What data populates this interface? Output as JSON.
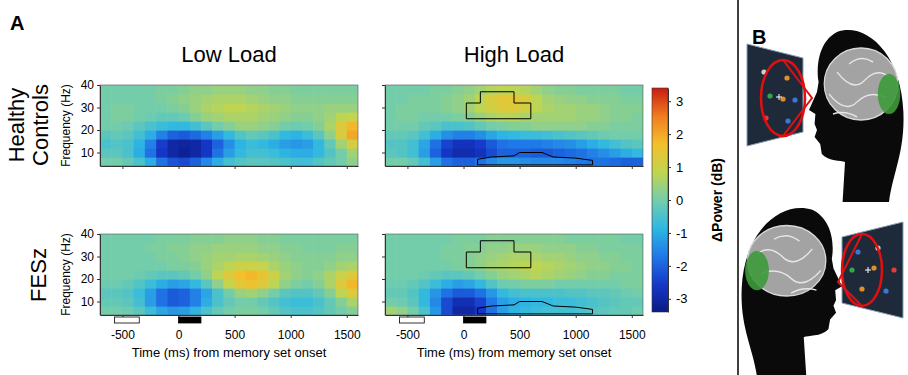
{
  "panel_labels": [
    "A",
    "B"
  ],
  "column_titles": [
    "Low Load",
    "High Load"
  ],
  "row_titles": [
    "Healthy Controls",
    "FESz"
  ],
  "colorbar": {
    "title": "ΔPower (dB)",
    "range": [
      -3.4,
      3.4
    ],
    "ticks": [
      -3,
      -2,
      -1,
      0,
      1,
      2,
      3
    ]
  },
  "chart_data": [
    {
      "type": "heatmap",
      "ylabel": "Frequency (Hz)",
      "tick_labels": "y",
      "xlim": [
        -700,
        1600
      ],
      "ylim": [
        4,
        40
      ],
      "xticks": [
        -500,
        0,
        500,
        1000,
        1500
      ],
      "yticks": [
        10,
        20,
        30,
        40
      ],
      "x_bins": [
        -700,
        -600,
        -500,
        -400,
        -300,
        -200,
        -100,
        0,
        100,
        200,
        300,
        400,
        500,
        600,
        700,
        800,
        900,
        1000,
        1100,
        1200,
        1300,
        1400,
        1500,
        1600
      ],
      "y_bins": [
        4,
        8,
        12,
        16,
        20,
        24,
        28,
        32,
        36,
        40
      ],
      "cells": [
        [
          0,
          0,
          -0.2,
          -0.5,
          -1,
          -1.8,
          -2.2,
          -2.3,
          -2,
          -1.5,
          -1,
          -0.6,
          -0.4,
          -0.3,
          -0.3,
          -0.4,
          -0.5,
          -0.6,
          -0.6,
          -0.4,
          -0.2,
          0,
          0.3
        ],
        [
          -0.3,
          -0.3,
          -0.5,
          -1,
          -1.8,
          -2.6,
          -3,
          -3.2,
          -3,
          -2.6,
          -1.8,
          -1.2,
          -0.8,
          -0.6,
          -0.6,
          -0.7,
          -0.9,
          -1,
          -1,
          -0.8,
          -0.4,
          0,
          0.5
        ],
        [
          -0.5,
          -0.4,
          -0.5,
          -0.9,
          -1.6,
          -2.5,
          -3,
          -3.1,
          -3,
          -2.6,
          -2,
          -1.4,
          -0.9,
          -0.7,
          -0.8,
          -1,
          -1.2,
          -1.3,
          -1.2,
          -0.8,
          -0.2,
          0.5,
          1.2
        ],
        [
          -0.3,
          -0.2,
          -0.3,
          -0.6,
          -1,
          -1.6,
          -2,
          -2.1,
          -1.9,
          -1.6,
          -1.2,
          -0.8,
          -0.4,
          -0.2,
          -0.3,
          -0.5,
          -0.8,
          -0.9,
          -0.7,
          -0.3,
          0.3,
          1.2,
          2
        ],
        [
          0,
          0,
          -0.1,
          -0.3,
          -0.5,
          -0.7,
          -0.8,
          -0.8,
          -0.6,
          -0.3,
          0,
          0.2,
          0.4,
          0.4,
          0.3,
          0.2,
          0,
          -0.1,
          0,
          0.2,
          0.6,
          1.3,
          1.8
        ],
        [
          0,
          0.1,
          0.1,
          0,
          -0.1,
          -0.2,
          -0.2,
          -0.1,
          0.2,
          0.4,
          0.5,
          0.6,
          0.6,
          0.6,
          0.5,
          0.4,
          0.3,
          0.2,
          0.2,
          0.3,
          0.5,
          0.8,
          0.9
        ],
        [
          0,
          0.1,
          0.1,
          0,
          0,
          0,
          0.1,
          0.2,
          0.4,
          0.6,
          0.7,
          0.8,
          0.8,
          0.7,
          0.6,
          0.5,
          0.4,
          0.3,
          0.3,
          0.3,
          0.4,
          0.4,
          0.4
        ],
        [
          0,
          0,
          0,
          0,
          0,
          0.1,
          0.2,
          0.3,
          0.4,
          0.5,
          0.6,
          0.6,
          0.6,
          0.5,
          0.4,
          0.3,
          0.3,
          0.2,
          0.2,
          0.2,
          0.2,
          0.2,
          0.2
        ],
        [
          0,
          0,
          0,
          0,
          0,
          0.1,
          0.1,
          0.2,
          0.3,
          0.3,
          0.4,
          0.4,
          0.4,
          0.3,
          0.3,
          0.2,
          0.2,
          0.1,
          0.1,
          0.1,
          0.1,
          0.1,
          0.1
        ]
      ]
    },
    {
      "type": "heatmap",
      "tick_labels": false,
      "xlim": [
        -700,
        1600
      ],
      "ylim": [
        4,
        40
      ],
      "xticks": [
        -500,
        0,
        500,
        1000,
        1500
      ],
      "yticks": [
        10,
        20,
        30,
        40
      ],
      "x_bins": [
        -700,
        -600,
        -500,
        -400,
        -300,
        -200,
        -100,
        0,
        100,
        200,
        300,
        400,
        500,
        600,
        700,
        800,
        900,
        1000,
        1100,
        1200,
        1300,
        1400,
        1500,
        1600
      ],
      "y_bins": [
        4,
        8,
        12,
        16,
        20,
        24,
        28,
        32,
        36,
        40
      ],
      "cells": [
        [
          0,
          0,
          -0.2,
          -0.6,
          -1.2,
          -1.8,
          -2,
          -2,
          -1.8,
          -1.5,
          -1.3,
          -1.3,
          -1.4,
          -1.5,
          -1.5,
          -1.5,
          -1.6,
          -1.7,
          -1.8,
          -1.8,
          -1.9,
          -2,
          -2
        ],
        [
          -0.3,
          -0.4,
          -0.6,
          -1.2,
          -2,
          -2.6,
          -2.9,
          -2.9,
          -2.7,
          -2.3,
          -2,
          -2,
          -2,
          -2.1,
          -2.1,
          -2,
          -1.9,
          -1.8,
          -1.6,
          -1.4,
          -1.2,
          -1,
          -0.8
        ],
        [
          -0.4,
          -0.4,
          -0.6,
          -1.1,
          -1.8,
          -2.4,
          -2.7,
          -2.7,
          -2.5,
          -2.1,
          -1.8,
          -1.7,
          -1.7,
          -1.7,
          -1.6,
          -1.5,
          -1.4,
          -1.2,
          -1,
          -0.8,
          -0.6,
          -0.4,
          -0.3
        ],
        [
          -0.2,
          -0.2,
          -0.3,
          -0.6,
          -1,
          -1.4,
          -1.6,
          -1.6,
          -1.4,
          -1.1,
          -0.9,
          -0.8,
          -0.7,
          -0.7,
          -0.6,
          -0.5,
          -0.4,
          -0.3,
          -0.2,
          -0.1,
          0,
          0,
          0
        ],
        [
          0,
          0,
          0,
          -0.2,
          -0.3,
          -0.5,
          -0.5,
          -0.4,
          -0.2,
          0,
          0.1,
          0.2,
          0.2,
          0.3,
          0.3,
          0.3,
          0.3,
          0.3,
          0.2,
          0.2,
          0.1,
          0.1,
          0.1
        ],
        [
          0,
          0.1,
          0.1,
          0,
          0,
          0,
          0.1,
          0.2,
          0.4,
          0.6,
          0.7,
          0.7,
          0.6,
          0.5,
          0.5,
          0.5,
          0.5,
          0.4,
          0.4,
          0.3,
          0.2,
          0.2,
          0.1
        ],
        [
          0,
          0.1,
          0.1,
          0.1,
          0.1,
          0.2,
          0.3,
          0.5,
          0.8,
          1.1,
          1.3,
          1.3,
          1.1,
          0.8,
          0.6,
          0.5,
          0.5,
          0.4,
          0.4,
          0.3,
          0.2,
          0.2,
          0.2
        ],
        [
          0,
          0,
          0.1,
          0.1,
          0.1,
          0.2,
          0.3,
          0.5,
          0.8,
          1.2,
          1.4,
          1.4,
          1.2,
          0.8,
          0.5,
          0.4,
          0.3,
          0.3,
          0.2,
          0.2,
          0.2,
          0.1,
          0.1
        ],
        [
          0,
          0,
          0,
          0,
          0.1,
          0.1,
          0.2,
          0.3,
          0.5,
          0.7,
          0.8,
          0.8,
          0.7,
          0.5,
          0.3,
          0.2,
          0.2,
          0.1,
          0.1,
          0.1,
          0.1,
          0,
          0
        ]
      ],
      "clusters": [
        [
          [
            150,
            37
          ],
          [
            450,
            37
          ],
          [
            450,
            32
          ],
          [
            600,
            32
          ],
          [
            600,
            25
          ],
          [
            25,
            25
          ],
          [
            25,
            32
          ],
          [
            150,
            32
          ]
        ],
        [
          [
            125,
            4.5
          ],
          [
            1150,
            4.5
          ],
          [
            1150,
            6.5
          ],
          [
            1000,
            7.5
          ],
          [
            800,
            8
          ],
          [
            700,
            10
          ],
          [
            500,
            10
          ],
          [
            450,
            8.5
          ],
          [
            250,
            8
          ],
          [
            125,
            7
          ]
        ]
      ]
    },
    {
      "type": "heatmap",
      "ylabel": "Frequency (Hz)",
      "xlabel": "Time (ms) from memory set onset",
      "xlim": [
        -700,
        1600
      ],
      "ylim": [
        4,
        40
      ],
      "xticks": [
        -500,
        0,
        500,
        1000,
        1500
      ],
      "yticks": [
        10,
        20,
        30,
        40
      ],
      "x_bins": [
        -700,
        -600,
        -500,
        -400,
        -300,
        -200,
        -100,
        0,
        100,
        200,
        300,
        400,
        500,
        600,
        700,
        800,
        900,
        1000,
        1100,
        1200,
        1300,
        1400,
        1500,
        1600
      ],
      "y_bins": [
        4,
        8,
        12,
        16,
        20,
        24,
        28,
        32,
        36,
        40
      ],
      "cells": [
        [
          0,
          0,
          -0.1,
          -0.3,
          -0.7,
          -1.1,
          -1.3,
          -1.2,
          -0.9,
          -0.5,
          -0.2,
          0,
          0.1,
          0.1,
          0,
          -0.2,
          -0.4,
          -0.5,
          -0.5,
          -0.4,
          -0.2,
          0,
          0.2
        ],
        [
          -0.2,
          -0.2,
          -0.3,
          -0.6,
          -1.2,
          -1.8,
          -2.1,
          -2,
          -1.6,
          -1,
          -0.5,
          -0.2,
          0,
          0,
          -0.2,
          -0.4,
          -0.6,
          -0.7,
          -0.7,
          -0.5,
          -0.2,
          0.2,
          0.6
        ],
        [
          -0.3,
          -0.3,
          -0.4,
          -0.7,
          -1.2,
          -1.8,
          -2.1,
          -2,
          -1.6,
          -1.1,
          -0.5,
          0,
          0.4,
          0.5,
          0.3,
          0,
          -0.3,
          -0.4,
          -0.4,
          -0.2,
          0.2,
          0.8,
          1.3
        ],
        [
          -0.1,
          -0.1,
          -0.2,
          -0.4,
          -0.7,
          -1,
          -1.2,
          -1.1,
          -0.8,
          -0.3,
          0.3,
          0.9,
          1.4,
          1.6,
          1.3,
          0.8,
          0.3,
          0.1,
          0,
          0.2,
          0.6,
          1.3,
          1.8
        ],
        [
          0,
          0,
          0,
          -0.1,
          -0.2,
          -0.3,
          -0.3,
          -0.2,
          0,
          0.3,
          0.8,
          1.3,
          1.7,
          1.8,
          1.5,
          1,
          0.5,
          0.3,
          0.2,
          0.3,
          0.6,
          1,
          1.3
        ],
        [
          0,
          0,
          0,
          0,
          0,
          0,
          0.1,
          0.1,
          0.2,
          0.4,
          0.6,
          0.8,
          1,
          1,
          0.9,
          0.6,
          0.4,
          0.3,
          0.2,
          0.2,
          0.3,
          0.5,
          0.6
        ],
        [
          0,
          0,
          0,
          0,
          0,
          0.1,
          0.1,
          0.2,
          0.3,
          0.4,
          0.5,
          0.5,
          0.6,
          0.6,
          0.5,
          0.4,
          0.3,
          0.2,
          0.2,
          0.2,
          0.2,
          0.3,
          0.3
        ],
        [
          0,
          0,
          0,
          0,
          0.1,
          0.1,
          0.2,
          0.2,
          0.3,
          0.3,
          0.4,
          0.4,
          0.4,
          0.4,
          0.3,
          0.3,
          0.2,
          0.2,
          0.1,
          0.1,
          0.1,
          0.2,
          0.2
        ],
        [
          0,
          0,
          0,
          0,
          0,
          0.1,
          0.1,
          0.1,
          0.2,
          0.2,
          0.2,
          0.3,
          0.3,
          0.3,
          0.2,
          0.2,
          0.1,
          0.1,
          0.1,
          0.1,
          0.1,
          0.1,
          0.1
        ]
      ],
      "events": [
        {
          "start": -570,
          "end": -350,
          "color": "white"
        },
        {
          "start": 0,
          "end": 200,
          "color": "black"
        }
      ]
    },
    {
      "type": "heatmap",
      "xlabel": "Time (ms) from memory set onset",
      "tick_labels": "x",
      "xlim": [
        -700,
        1600
      ],
      "ylim": [
        4,
        40
      ],
      "xticks": [
        -500,
        0,
        500,
        1000,
        1500
      ],
      "yticks": [
        10,
        20,
        30,
        40
      ],
      "x_bins": [
        -700,
        -600,
        -500,
        -400,
        -300,
        -200,
        -100,
        0,
        100,
        200,
        300,
        400,
        500,
        600,
        700,
        800,
        900,
        1000,
        1100,
        1200,
        1300,
        1400,
        1500,
        1600
      ],
      "y_bins": [
        4,
        8,
        12,
        16,
        20,
        24,
        28,
        32,
        36,
        40
      ],
      "cells": [
        [
          0.5,
          0.3,
          0,
          -0.5,
          -1.3,
          -2.3,
          -3,
          -3,
          -2.6,
          -1.8,
          -1.2,
          -0.9,
          -0.8,
          -0.7,
          -0.6,
          -0.6,
          -0.6,
          -0.5,
          -0.4,
          -0.3,
          -0.2,
          -0.2,
          -0.1
        ],
        [
          0,
          -0.1,
          -0.3,
          -0.8,
          -1.5,
          -2.3,
          -2.8,
          -2.8,
          -2.4,
          -1.7,
          -1.2,
          -1,
          -0.9,
          -0.8,
          -0.8,
          -0.7,
          -0.7,
          -0.6,
          -0.5,
          -0.4,
          -0.3,
          -0.2,
          -0.2
        ],
        [
          -0.2,
          -0.2,
          -0.4,
          -0.8,
          -1.3,
          -1.8,
          -2.1,
          -2.1,
          -1.8,
          -1.3,
          -0.8,
          -0.6,
          -0.5,
          -0.5,
          -0.5,
          -0.5,
          -0.4,
          -0.4,
          -0.3,
          -0.3,
          -0.2,
          -0.1,
          0
        ],
        [
          -0.1,
          -0.1,
          -0.2,
          -0.4,
          -0.7,
          -1,
          -1.2,
          -1.1,
          -0.8,
          -0.4,
          -0.1,
          0,
          0.1,
          0.1,
          0.1,
          0,
          0,
          0,
          0,
          0,
          0,
          0.1,
          0.1
        ],
        [
          0,
          0,
          0,
          -0.1,
          -0.2,
          -0.3,
          -0.3,
          -0.2,
          0,
          0.2,
          0.4,
          0.5,
          0.6,
          0.7,
          0.6,
          0.5,
          0.4,
          0.3,
          0.2,
          0.2,
          0.1,
          0.1,
          0.1
        ],
        [
          0,
          0,
          0,
          0,
          0,
          0,
          0.1,
          0.2,
          0.3,
          0.5,
          0.6,
          0.7,
          0.8,
          0.8,
          0.7,
          0.6,
          0.5,
          0.4,
          0.3,
          0.3,
          0.2,
          0.2,
          0.1
        ],
        [
          0,
          0,
          0,
          0,
          0,
          0.1,
          0.1,
          0.2,
          0.3,
          0.4,
          0.5,
          0.6,
          0.6,
          0.6,
          0.5,
          0.5,
          0.4,
          0.3,
          0.3,
          0.2,
          0.2,
          0.1,
          0.1
        ],
        [
          0,
          0,
          0,
          0,
          0,
          0.1,
          0.1,
          0.2,
          0.2,
          0.3,
          0.3,
          0.4,
          0.4,
          0.4,
          0.3,
          0.3,
          0.3,
          0.2,
          0.2,
          0.1,
          0.1,
          0.1,
          0.1
        ],
        [
          0,
          0,
          0,
          0,
          0,
          0,
          0.1,
          0.1,
          0.1,
          0.2,
          0.2,
          0.2,
          0.2,
          0.2,
          0.2,
          0.2,
          0.1,
          0.1,
          0.1,
          0.1,
          0.1,
          0,
          0
        ]
      ],
      "clusters": [
        [
          [
            150,
            37
          ],
          [
            450,
            37
          ],
          [
            450,
            32
          ],
          [
            600,
            32
          ],
          [
            600,
            25
          ],
          [
            25,
            25
          ],
          [
            25,
            32
          ],
          [
            150,
            32
          ]
        ],
        [
          [
            125,
            4.5
          ],
          [
            1150,
            4.5
          ],
          [
            1150,
            6.5
          ],
          [
            1000,
            7.5
          ],
          [
            800,
            8
          ],
          [
            700,
            10
          ],
          [
            500,
            10
          ],
          [
            450,
            8.5
          ],
          [
            250,
            8
          ],
          [
            125,
            7
          ]
        ]
      ],
      "events": [
        {
          "start": -570,
          "end": -350,
          "color": "white"
        },
        {
          "start": 0,
          "end": 200,
          "color": "black"
        }
      ]
    }
  ]
}
